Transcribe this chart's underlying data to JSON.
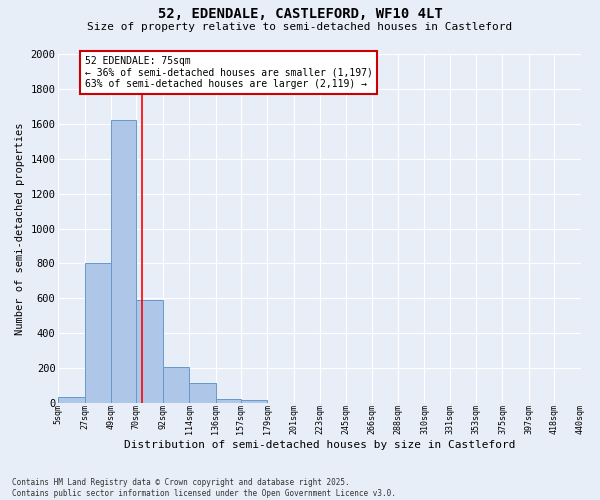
{
  "title1": "52, EDENDALE, CASTLEFORD, WF10 4LT",
  "title2": "Size of property relative to semi-detached houses in Castleford",
  "xlabel": "Distribution of semi-detached houses by size in Castleford",
  "ylabel": "Number of semi-detached properties",
  "bins": [
    "5sqm",
    "27sqm",
    "49sqm",
    "70sqm",
    "92sqm",
    "114sqm",
    "136sqm",
    "157sqm",
    "179sqm",
    "201sqm",
    "223sqm",
    "245sqm",
    "266sqm",
    "288sqm",
    "310sqm",
    "331sqm",
    "353sqm",
    "375sqm",
    "397sqm",
    "418sqm",
    "440sqm"
  ],
  "counts": [
    35,
    800,
    1620,
    590,
    205,
    115,
    25,
    20,
    0,
    0,
    0,
    0,
    0,
    0,
    0,
    0,
    0,
    0,
    0,
    0
  ],
  "bar_color": "#aec6e8",
  "bar_edge_color": "#6699cc",
  "background_color": "#e8eef8",
  "grid_color": "#ffffff",
  "red_line_x": 75,
  "annotation_text": "52 EDENDALE: 75sqm\n← 36% of semi-detached houses are smaller (1,197)\n63% of semi-detached houses are larger (2,119) →",
  "annotation_box_color": "#ffffff",
  "annotation_box_edge": "#cc0000",
  "ylim": [
    0,
    2000
  ],
  "yticks": [
    0,
    200,
    400,
    600,
    800,
    1000,
    1200,
    1400,
    1600,
    1800,
    2000
  ],
  "footer1": "Contains HM Land Registry data © Crown copyright and database right 2025.",
  "footer2": "Contains public sector information licensed under the Open Government Licence v3.0.",
  "bin_edges_numeric": [
    5,
    27,
    49,
    70,
    92,
    114,
    136,
    157,
    179,
    201,
    223,
    245,
    266,
    288,
    310,
    331,
    353,
    375,
    397,
    418,
    440
  ]
}
